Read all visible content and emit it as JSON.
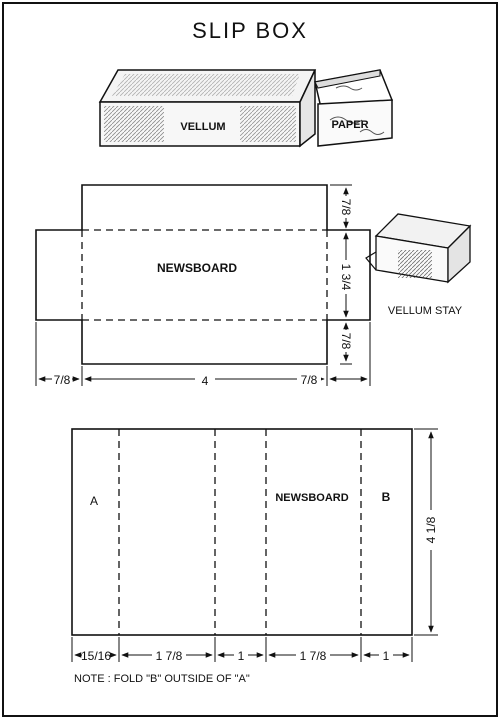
{
  "title": "SLIP BOX",
  "illustration": {
    "vellum_label": "VELLUM",
    "paper_label": "PAPER",
    "stay_label": "VELLUM STAY"
  },
  "lid_pattern": {
    "label": "NEWSBOARD",
    "dims": {
      "flap_top": "7/8",
      "height": "1 3/4",
      "flap_bottom": "7/8",
      "flap_left": "7/8",
      "width": "4",
      "flap_right": "7/8"
    }
  },
  "tray_pattern": {
    "label_a": "A",
    "label_newsboard": "NEWSBOARD",
    "label_b": "B",
    "height": "4 1/8",
    "widths": [
      "15/16",
      "1 7/8",
      "1",
      "1 7/8",
      "1"
    ],
    "note": "NOTE : FOLD \"B\" OUTSIDE OF \"A\""
  }
}
